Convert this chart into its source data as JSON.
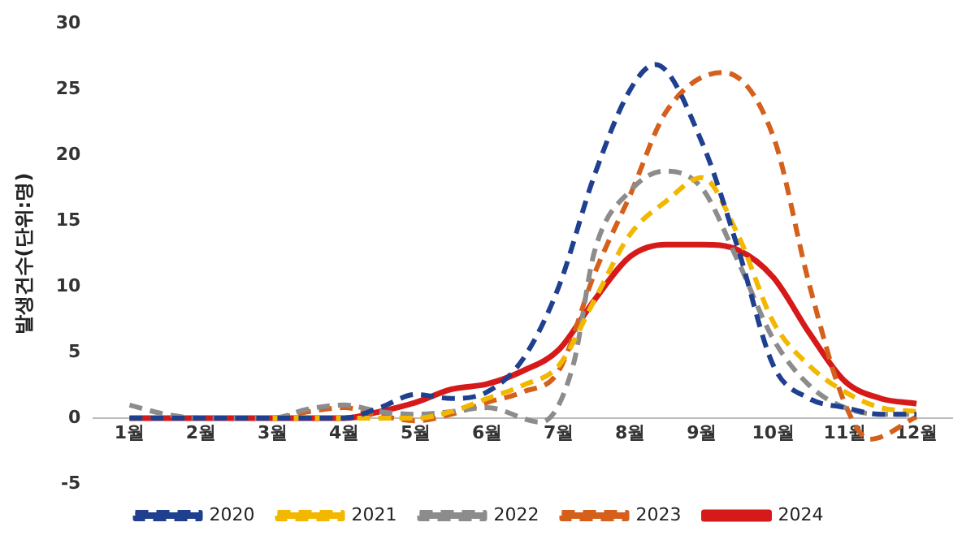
{
  "chart_data": {
    "type": "line",
    "ylabel": "발생건수(단위:명)",
    "xlim": [
      0.5,
      12.5
    ],
    "ylim": [
      -5,
      30
    ],
    "yticks": [
      -5,
      0,
      5,
      10,
      15,
      20,
      25,
      30
    ],
    "xticks": [
      {
        "value": 1,
        "label": "1월"
      },
      {
        "value": 2,
        "label": "2월"
      },
      {
        "value": 3,
        "label": "3월"
      },
      {
        "value": 4,
        "label": "4월"
      },
      {
        "value": 5,
        "label": "5월"
      },
      {
        "value": 6,
        "label": "6월"
      },
      {
        "value": 7,
        "label": "7월"
      },
      {
        "value": 8,
        "label": "8월"
      },
      {
        "value": 9,
        "label": "9월"
      },
      {
        "value": 10,
        "label": "10월"
      },
      {
        "value": 11,
        "label": "11월"
      },
      {
        "value": 12,
        "label": "12월"
      }
    ],
    "grid": false,
    "legend": "bottom",
    "marker": "none",
    "series": [
      {
        "name": "2020",
        "color": "#1f3f8f",
        "line_style": "dashed",
        "x": [
          1,
          2,
          3,
          4,
          4.5,
          5,
          5.5,
          6,
          6.5,
          7,
          7.5,
          8,
          8.35,
          9,
          9.5,
          10,
          10.5,
          11,
          11.5,
          12
        ],
        "values": [
          0,
          0,
          0,
          0,
          0.8,
          1.8,
          1.5,
          2,
          4.5,
          10,
          18.5,
          25,
          26.9,
          21,
          13,
          4,
          1.5,
          0.8,
          0.3,
          0.3
        ]
      },
      {
        "name": "2021",
        "color": "#f2b800",
        "line_style": "dashed",
        "x": [
          3,
          4,
          5,
          5.5,
          6,
          6.5,
          7,
          7.5,
          8,
          8.5,
          9,
          9.5,
          10,
          10.5,
          11,
          11.5,
          12
        ],
        "values": [
          0,
          0,
          0,
          0.5,
          1.5,
          2.5,
          4,
          9,
          14,
          16.5,
          18.3,
          14,
          7.3,
          4,
          2,
          0.8,
          0.5
        ]
      },
      {
        "name": "2022",
        "color": "#8c8c8c",
        "line_style": "dashed",
        "x": [
          1,
          1.5,
          2,
          3,
          3.5,
          4,
          4.5,
          5,
          5.5,
          6,
          6.75,
          7.2,
          7.5,
          8,
          8.48,
          9,
          9.5,
          10,
          10.5,
          11,
          11.5,
          12
        ],
        "values": [
          1,
          0.3,
          0,
          0,
          0.7,
          1,
          0.5,
          0.3,
          0.5,
          0.8,
          -0.3,
          4,
          12.7,
          17.3,
          18.8,
          17.5,
          12,
          6,
          2.5,
          0.8,
          0.3,
          0.3
        ]
      },
      {
        "name": "2023",
        "color": "#d4601c",
        "line_style": "dashed",
        "x": [
          1,
          2,
          3,
          3.5,
          4,
          4.5,
          5,
          5.5,
          6,
          6.5,
          7,
          7.5,
          8,
          8.5,
          9.3,
          10,
          10.5,
          11,
          11.35,
          12
        ],
        "values": [
          0,
          0,
          0,
          0.5,
          0.8,
          0.2,
          -0.2,
          0.3,
          1.2,
          2,
          3.6,
          11,
          17,
          23.3,
          26.3,
          21.4,
          10.2,
          1.1,
          -1.6,
          0.1
        ]
      },
      {
        "name": "2024",
        "color": "#d61a1a",
        "line_style": "solid",
        "x": [
          1,
          2,
          3,
          4,
          4.5,
          5,
          5.5,
          6,
          6.5,
          7,
          7.5,
          8,
          8.5,
          9,
          9.5,
          10,
          10.5,
          11,
          11.5,
          12
        ],
        "values": [
          0,
          0,
          0,
          0,
          0.5,
          1.2,
          2.2,
          2.6,
          3.6,
          5.2,
          9,
          12.3,
          13.2,
          13.2,
          12.8,
          10.7,
          6.5,
          2.8,
          1.5,
          1.1
        ]
      }
    ]
  }
}
